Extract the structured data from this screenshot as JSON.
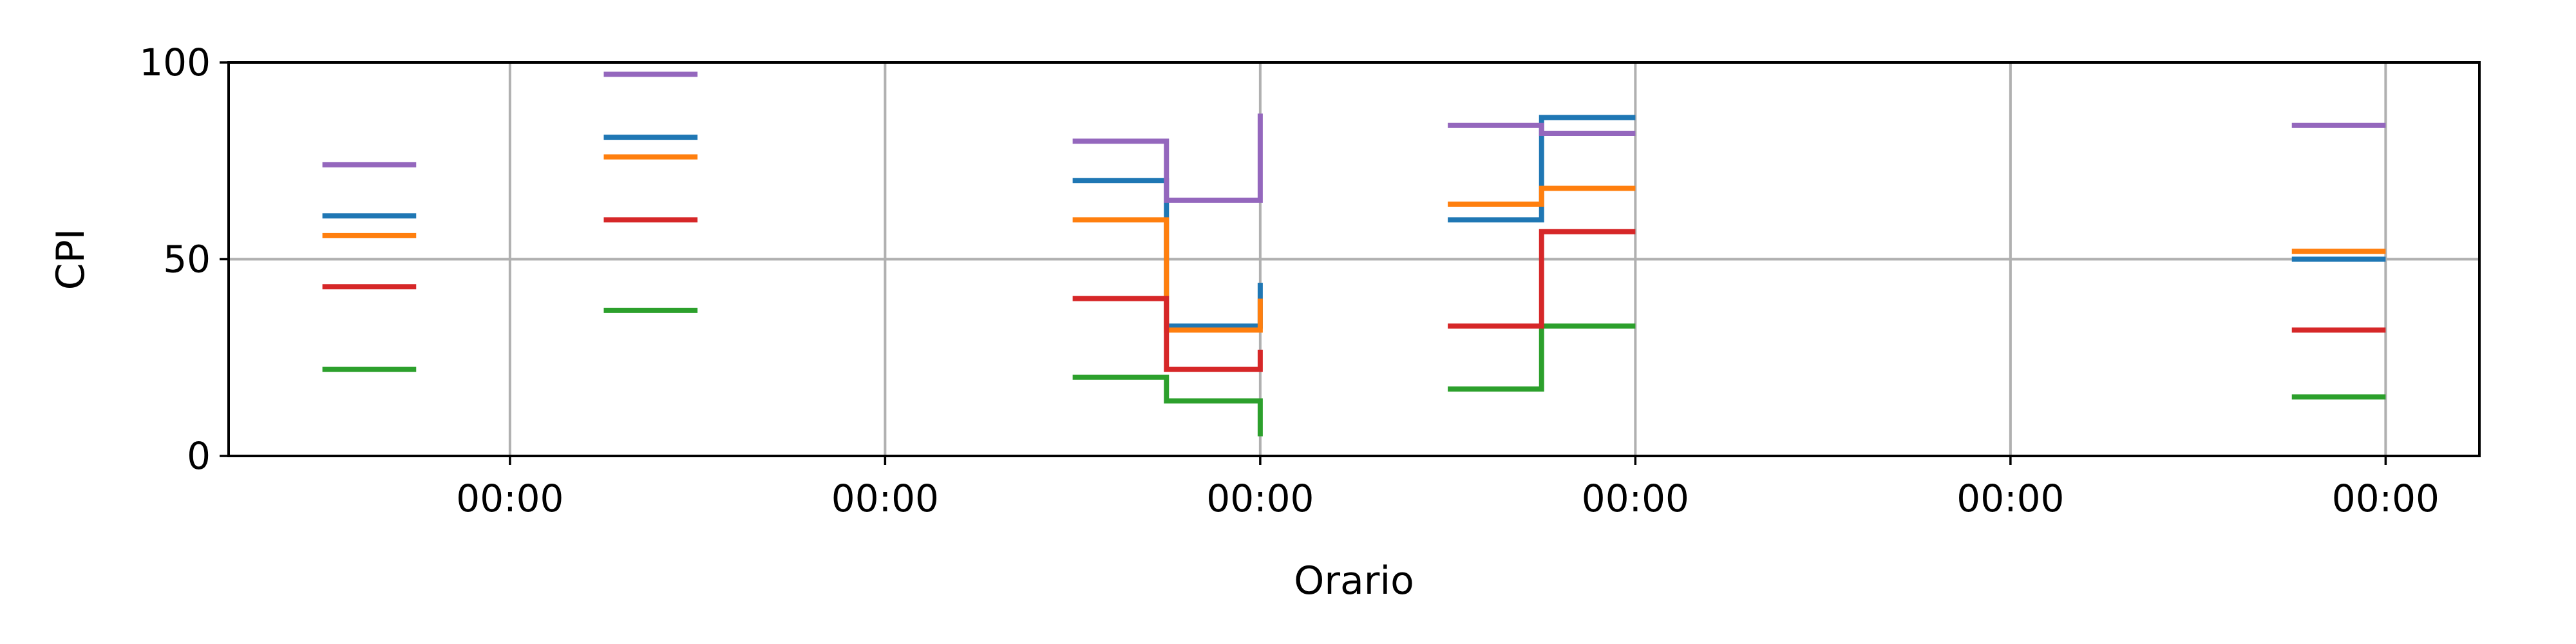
{
  "chart_data": {
    "type": "line",
    "title": "",
    "xlabel": "Orario",
    "ylabel": "CPI",
    "ylim": [
      0,
      100
    ],
    "yticks": [
      0,
      50,
      100
    ],
    "xlim": [
      0,
      12
    ],
    "xticks": [
      {
        "value": 1.5,
        "label": "00:00"
      },
      {
        "value": 3.5,
        "label": "00:00"
      },
      {
        "value": 5.5,
        "label": "00:00"
      },
      {
        "value": 7.5,
        "label": "00:00"
      },
      {
        "value": 9.5,
        "label": "00:00"
      },
      {
        "value": 11.5,
        "label": "00:00"
      }
    ],
    "grid": true,
    "legend": "none",
    "step_mode": "post",
    "series": [
      {
        "color": "#1f77b4",
        "segments": [
          {
            "x": [
              0.5,
              1.0
            ],
            "y": [
              61,
              61
            ]
          },
          {
            "x": [
              2.0,
              2.5
            ],
            "y": [
              81,
              81
            ]
          },
          {
            "x": [
              4.5,
              5.0,
              5.5
            ],
            "y": [
              70,
              33,
              44
            ]
          },
          {
            "x": [
              6.5,
              7.0,
              7.5
            ],
            "y": [
              60,
              86,
              86
            ]
          },
          {
            "x": [
              11.0,
              11.5
            ],
            "y": [
              50,
              50
            ]
          }
        ]
      },
      {
        "color": "#ff7f0e",
        "segments": [
          {
            "x": [
              0.5,
              1.0
            ],
            "y": [
              56,
              56
            ]
          },
          {
            "x": [
              2.0,
              2.5
            ],
            "y": [
              76,
              76
            ]
          },
          {
            "x": [
              4.5,
              5.0,
              5.5
            ],
            "y": [
              60,
              32,
              40
            ]
          },
          {
            "x": [
              6.5,
              7.0,
              7.5
            ],
            "y": [
              64,
              68,
              68
            ]
          },
          {
            "x": [
              11.0,
              11.5
            ],
            "y": [
              52,
              52
            ]
          }
        ]
      },
      {
        "color": "#2ca02c",
        "segments": [
          {
            "x": [
              0.5,
              1.0
            ],
            "y": [
              22,
              22
            ]
          },
          {
            "x": [
              2.0,
              2.5
            ],
            "y": [
              37,
              37
            ]
          },
          {
            "x": [
              4.5,
              5.0,
              5.5
            ],
            "y": [
              20,
              14,
              5
            ]
          },
          {
            "x": [
              6.5,
              7.0,
              7.5
            ],
            "y": [
              17,
              33,
              33
            ]
          },
          {
            "x": [
              11.0,
              11.5
            ],
            "y": [
              15,
              15
            ]
          }
        ]
      },
      {
        "color": "#d62728",
        "segments": [
          {
            "x": [
              0.5,
              1.0
            ],
            "y": [
              43,
              43
            ]
          },
          {
            "x": [
              2.0,
              2.5
            ],
            "y": [
              60,
              60
            ]
          },
          {
            "x": [
              4.5,
              5.0,
              5.5
            ],
            "y": [
              40,
              22,
              27
            ]
          },
          {
            "x": [
              6.5,
              7.0,
              7.5
            ],
            "y": [
              33,
              57,
              57
            ]
          },
          {
            "x": [
              11.0,
              11.5
            ],
            "y": [
              32,
              32
            ]
          }
        ]
      },
      {
        "color": "#9467bd",
        "segments": [
          {
            "x": [
              0.5,
              1.0
            ],
            "y": [
              74,
              74
            ]
          },
          {
            "x": [
              2.0,
              2.5
            ],
            "y": [
              97,
              97
            ]
          },
          {
            "x": [
              4.5,
              5.0,
              5.5
            ],
            "y": [
              80,
              65,
              87
            ]
          },
          {
            "x": [
              6.5,
              7.0,
              7.5
            ],
            "y": [
              84,
              82,
              82
            ]
          },
          {
            "x": [
              11.0,
              11.5
            ],
            "y": [
              84,
              84
            ]
          }
        ]
      }
    ]
  }
}
